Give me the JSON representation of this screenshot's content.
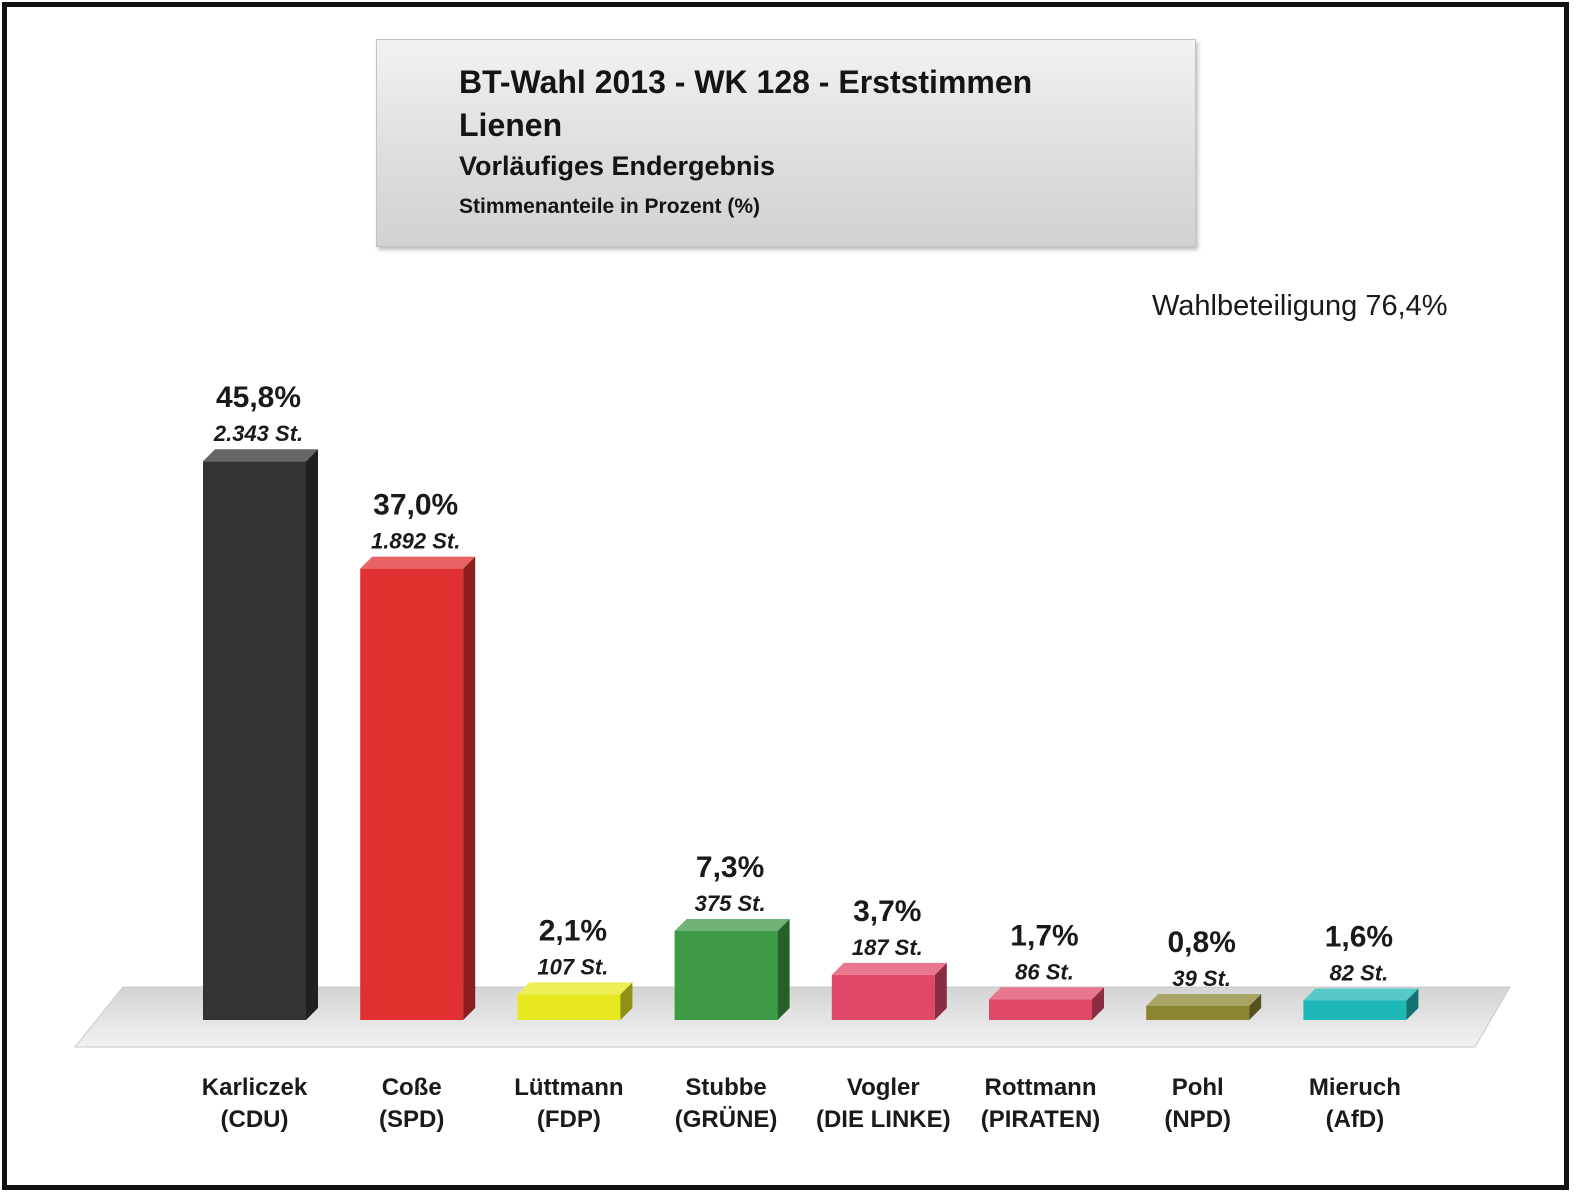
{
  "chart_data": {
    "type": "bar",
    "title": "BT-Wahl 2013 - WK 128 - Erststimmen",
    "subtitle_lines": [
      "Lienen",
      "Vorläufiges Endergebnis",
      "Stimmenanteile in Prozent (%)"
    ],
    "annotation": "Wahlbeteiligung 76,4%",
    "ylim": [
      0,
      50
    ],
    "grid": false,
    "legend": "none",
    "categories": [
      {
        "name": "Karliczek",
        "party": "(CDU)"
      },
      {
        "name": "Coße",
        "party": "(SPD)"
      },
      {
        "name": "Lüttmann",
        "party": "(FDP)"
      },
      {
        "name": "Stubbe",
        "party": "(GRÜNE)"
      },
      {
        "name": "Vogler",
        "party": "(DIE LINKE)"
      },
      {
        "name": "Rottmann",
        "party": "(PIRATEN)"
      },
      {
        "name": "Pohl",
        "party": "(NPD)"
      },
      {
        "name": "Mieruch",
        "party": "(AfD)"
      }
    ],
    "values": [
      45.8,
      37.0,
      2.1,
      7.3,
      3.7,
      1.7,
      0.8,
      1.6
    ],
    "value_labels": [
      "45,8%",
      "37,0%",
      "2,1%",
      "7,3%",
      "3,7%",
      "1,7%",
      "0,8%",
      "1,6%"
    ],
    "votes_labels": [
      "2.343 St.",
      "1.892 St.",
      "107 St.",
      "375 St.",
      "187 St.",
      "86 St.",
      "39 St.",
      "82 St."
    ],
    "colors": [
      "#333333",
      "#e03030",
      "#e8e820",
      "#3f9a45",
      "#e04868",
      "#e04868",
      "#8a8530",
      "#1eb8b8"
    ]
  }
}
